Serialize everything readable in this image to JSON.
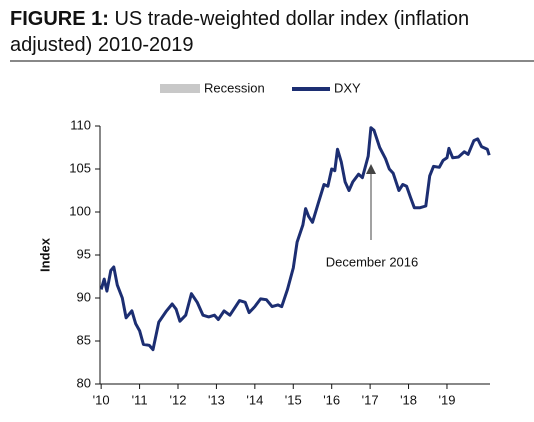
{
  "chart_data": {
    "type": "line",
    "title_label": "FIGURE 1:",
    "title": "US trade-weighted dollar index (inflation adjusted) 2010-2019",
    "y_label": "Index",
    "annotation": "December 2016",
    "recession": {
      "name": "Recession",
      "color": "#c8c8c8"
    },
    "x": [
      2010.0,
      2010.08,
      2010.15,
      2010.25,
      2010.33,
      2010.42,
      2010.55,
      2010.65,
      2010.8,
      2010.9,
      2011.0,
      2011.1,
      2011.25,
      2011.35,
      2011.5,
      2011.7,
      2011.85,
      2011.95,
      2012.05,
      2012.2,
      2012.35,
      2012.5,
      2012.65,
      2012.8,
      2012.95,
      2013.05,
      2013.2,
      2013.35,
      2013.5,
      2013.6,
      2013.75,
      2013.85,
      2014.0,
      2014.15,
      2014.3,
      2014.45,
      2014.6,
      2014.7,
      2014.85,
      2015.0,
      2015.1,
      2015.25,
      2015.32,
      2015.4,
      2015.5,
      2015.65,
      2015.8,
      2015.9,
      2016.0,
      2016.08,
      2016.15,
      2016.25,
      2016.35,
      2016.45,
      2016.55,
      2016.7,
      2016.8,
      2016.95,
      2017.02,
      2017.1,
      2017.25,
      2017.4,
      2017.5,
      2017.6,
      2017.75,
      2017.85,
      2017.95,
      2018.05,
      2018.15,
      2018.3,
      2018.45,
      2018.55,
      2018.65,
      2018.8,
      2018.9,
      2019.0,
      2019.05,
      2019.15,
      2019.3,
      2019.45,
      2019.55,
      2019.7,
      2019.8,
      2019.9,
      2020.05,
      2020.1
    ],
    "series": [
      {
        "name": "DXY",
        "color": "#1c2e72",
        "values": [
          91,
          92.2,
          90.8,
          93.2,
          93.6,
          91.5,
          90,
          87.7,
          88.5,
          87,
          86.2,
          84.6,
          84.5,
          84,
          87.2,
          88.5,
          89.3,
          88.7,
          87.3,
          88,
          90.5,
          89.5,
          88,
          87.8,
          88,
          87.5,
          88.5,
          88,
          89,
          89.7,
          89.5,
          88.3,
          89,
          89.9,
          89.8,
          89,
          89.2,
          89,
          91,
          93.5,
          96.5,
          98.5,
          100.4,
          99.5,
          98.8,
          101,
          103.2,
          103,
          105,
          104.8,
          107.3,
          105.8,
          103.5,
          102.5,
          103.5,
          104.4,
          104,
          106.5,
          109.8,
          109.5,
          107.5,
          106.2,
          105,
          104.5,
          102.5,
          103.2,
          103,
          101.7,
          100.5,
          100.5,
          100.7,
          104.2,
          105.3,
          105.2,
          106,
          106.3,
          107.4,
          106.3,
          106.4,
          107,
          106.7,
          108.3,
          108.5,
          107.6,
          107.3,
          106.6
        ]
      }
    ],
    "xlim": [
      2009.97,
      2020.12
    ],
    "xticks": [
      {
        "value": 2010,
        "label": "'10"
      },
      {
        "value": 2011,
        "label": "'11"
      },
      {
        "value": 2012,
        "label": "'12"
      },
      {
        "value": 2013,
        "label": "'13"
      },
      {
        "value": 2014,
        "label": "'14"
      },
      {
        "value": 2015,
        "label": "'15"
      },
      {
        "value": 2016,
        "label": "'16"
      },
      {
        "value": 2017,
        "label": "'17"
      },
      {
        "value": 2018,
        "label": "'18"
      },
      {
        "value": 2019,
        "label": "'19"
      }
    ],
    "ylim": [
      80,
      110
    ],
    "yticks": [
      80,
      85,
      90,
      95,
      100,
      105,
      110
    ],
    "grid": false
  }
}
